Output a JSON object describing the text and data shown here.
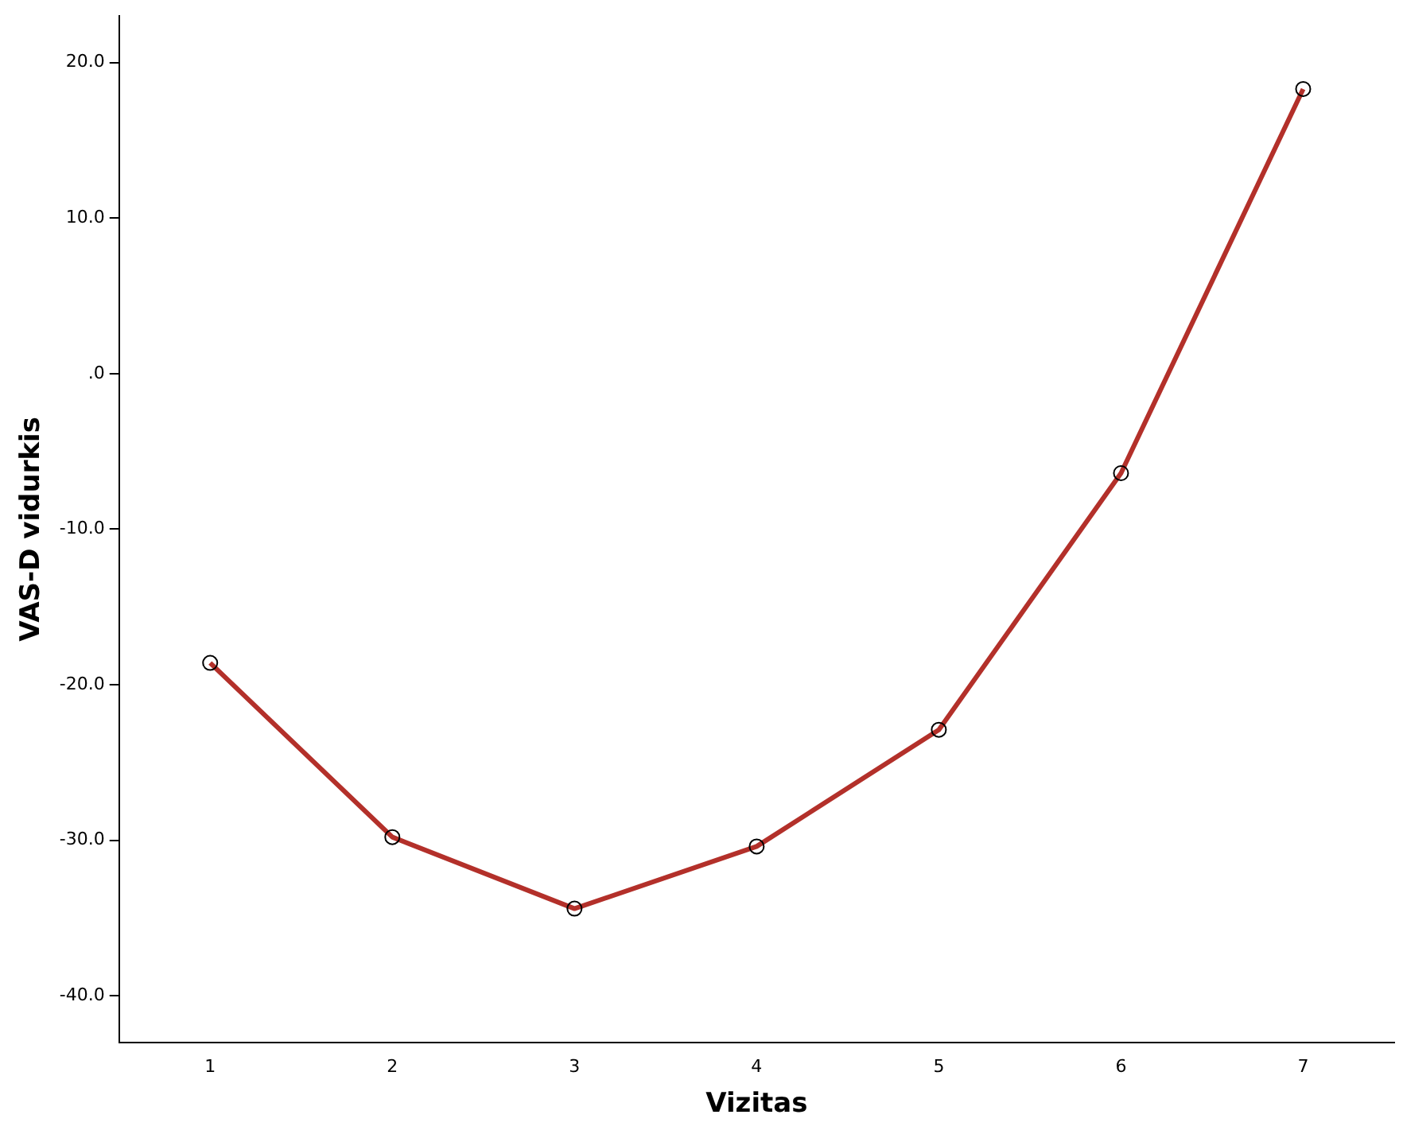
{
  "chart_data": {
    "type": "line",
    "xlabel": "Vizitas",
    "ylabel": "VAS-D vidurkis",
    "categories": [
      "1",
      "2",
      "3",
      "4",
      "5",
      "6",
      "7"
    ],
    "series": [
      {
        "color": "#b3302a",
        "values": [
          -18.6,
          -29.8,
          -34.4,
          -30.4,
          -22.9,
          -6.4,
          18.3
        ]
      }
    ],
    "ylim": [
      -43,
      23
    ],
    "yticks": [
      {
        "value": -40,
        "label": "-40.0"
      },
      {
        "value": -30,
        "label": "-30.0"
      },
      {
        "value": -20,
        "label": "-20.0"
      },
      {
        "value": -10,
        "label": "-10.0"
      },
      {
        "value": 0,
        "label": ".0"
      },
      {
        "value": 10,
        "label": "10.0"
      },
      {
        "value": 20,
        "label": "20.0"
      }
    ],
    "grid": false,
    "legend": false,
    "marker": "circle",
    "line_style": "solid"
  }
}
